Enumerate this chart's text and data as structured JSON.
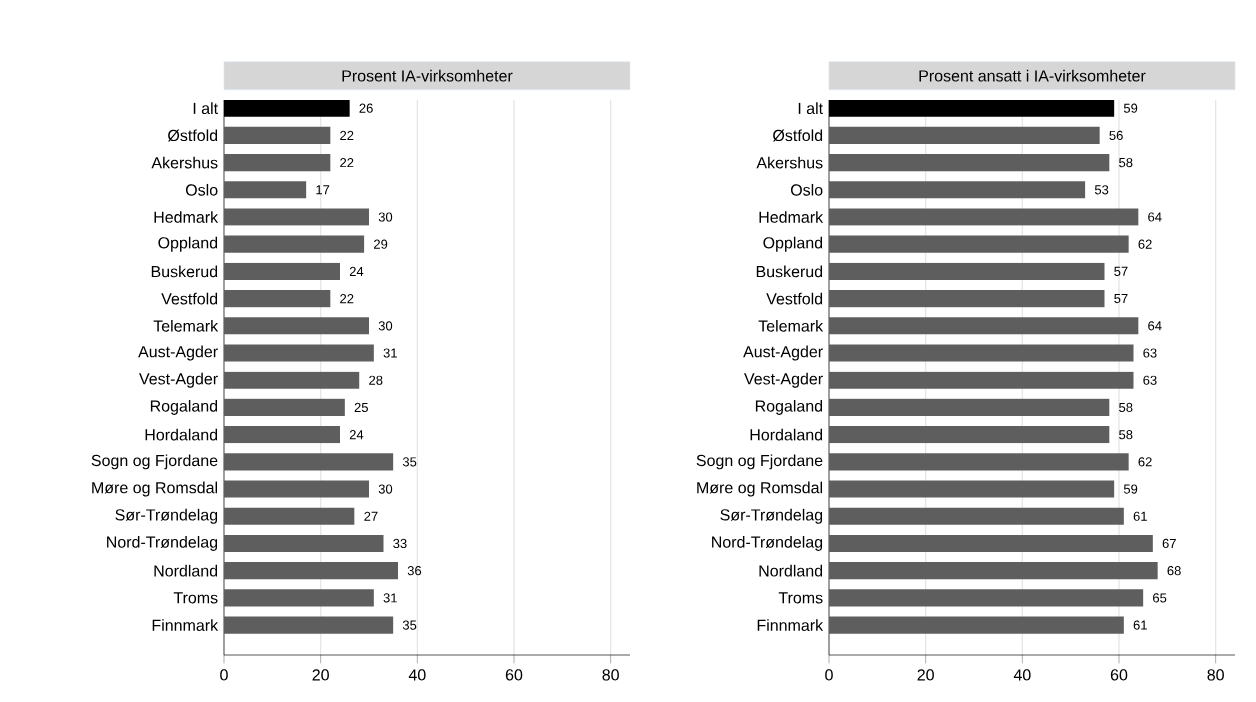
{
  "chart_data": [
    {
      "type": "bar",
      "orientation": "horizontal",
      "title": "Prosent IA-virksomheter",
      "categories": [
        "I alt",
        "Østfold",
        "Akershus",
        "Oslo",
        "Hedmark",
        "Oppland",
        "Buskerud",
        "Vestfold",
        "Telemark",
        "Aust-Agder",
        "Vest-Agder",
        "Rogaland",
        "Hordaland",
        "Sogn og Fjordane",
        "Møre og Romsdal",
        "Sør-Trøndelag",
        "Nord-Trøndelag",
        "Nordland",
        "Troms",
        "Finnmark"
      ],
      "values": [
        26,
        22,
        22,
        17,
        30,
        29,
        24,
        22,
        30,
        31,
        28,
        25,
        24,
        35,
        30,
        27,
        33,
        36,
        31,
        35
      ],
      "colors": [
        "#000000",
        "#5e5e5e",
        "#5e5e5e",
        "#5e5e5e",
        "#5e5e5e",
        "#5e5e5e",
        "#5e5e5e",
        "#5e5e5e",
        "#5e5e5e",
        "#5e5e5e",
        "#5e5e5e",
        "#5e5e5e",
        "#5e5e5e",
        "#5e5e5e",
        "#5e5e5e",
        "#5e5e5e",
        "#5e5e5e",
        "#5e5e5e",
        "#5e5e5e",
        "#5e5e5e"
      ],
      "xlim": [
        0,
        84
      ],
      "xticks": [
        0,
        20,
        40,
        60,
        80
      ],
      "grid": "x",
      "data_labels": true
    },
    {
      "type": "bar",
      "orientation": "horizontal",
      "title": "Prosent ansatt i IA-virksomheter",
      "categories": [
        "I alt",
        "Østfold",
        "Akershus",
        "Oslo",
        "Hedmark",
        "Oppland",
        "Buskerud",
        "Vestfold",
        "Telemark",
        "Aust-Agder",
        "Vest-Agder",
        "Rogaland",
        "Hordaland",
        "Sogn og Fjordane",
        "Møre og Romsdal",
        "Sør-Trøndelag",
        "Nord-Trøndelag",
        "Nordland",
        "Troms",
        "Finnmark"
      ],
      "values": [
        59,
        56,
        58,
        53,
        64,
        62,
        57,
        57,
        64,
        63,
        63,
        58,
        58,
        62,
        59,
        61,
        67,
        68,
        65,
        61
      ],
      "colors": [
        "#000000",
        "#5e5e5e",
        "#5e5e5e",
        "#5e5e5e",
        "#5e5e5e",
        "#5e5e5e",
        "#5e5e5e",
        "#5e5e5e",
        "#5e5e5e",
        "#5e5e5e",
        "#5e5e5e",
        "#5e5e5e",
        "#5e5e5e",
        "#5e5e5e",
        "#5e5e5e",
        "#5e5e5e",
        "#5e5e5e",
        "#5e5e5e",
        "#5e5e5e",
        "#5e5e5e"
      ],
      "xlim": [
        0,
        84
      ],
      "xticks": [
        0,
        20,
        40,
        60,
        80
      ],
      "grid": "x",
      "data_labels": true
    }
  ]
}
